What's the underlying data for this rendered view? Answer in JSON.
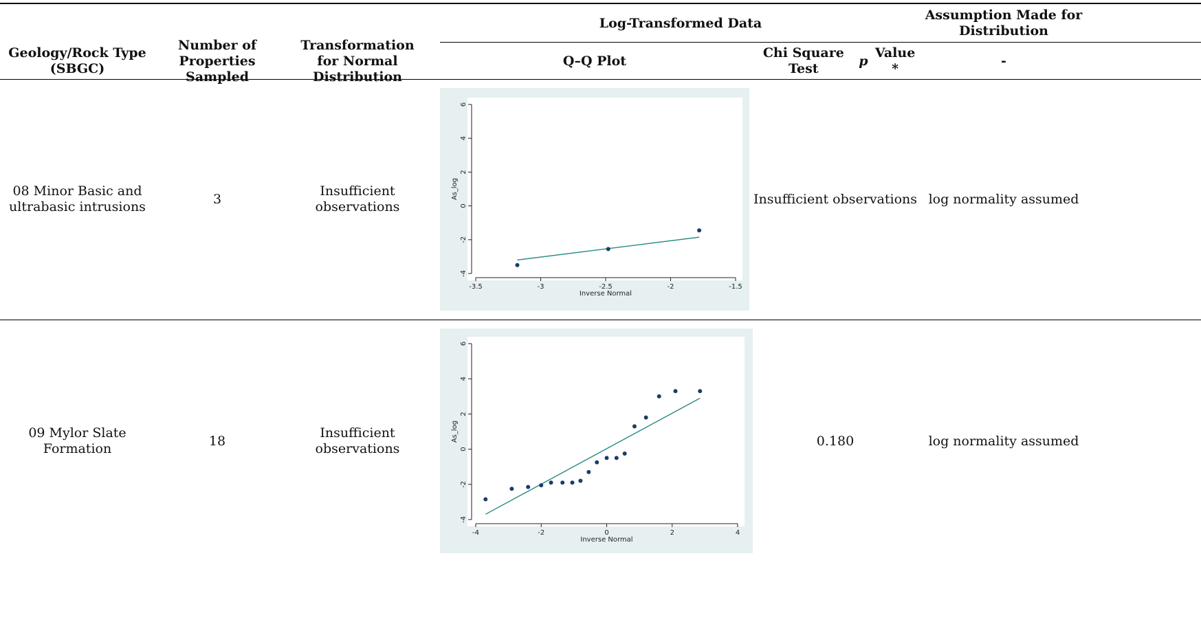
{
  "header": {
    "group_log": "Log-Transformed Data",
    "group_assumption": "Assumption Made for Distribution",
    "columns": [
      "Geology/Rock Type (SBGC)",
      "Number of Properties Sampled",
      "Transformation for Normal Distribution",
      "Q–Q Plot",
      "Chi Square Test",
      "p",
      "Value *",
      "-"
    ]
  },
  "rows": [
    {
      "geology": "08 Minor Basic and ultrabasic intrusions",
      "count": "3",
      "transformation": "Insufficient observations",
      "chi": "Insufficient observations",
      "assumption": "log normality assumed"
    },
    {
      "geology": "09 Mylor Slate Formation",
      "count": "18",
      "transformation": "Insufficient observations",
      "chi": "0.180",
      "assumption": "log normality assumed"
    }
  ],
  "chart_data": [
    {
      "type": "scatter",
      "xlabel": "Inverse Normal",
      "ylabel": "As_log",
      "xlim": [
        -3.5,
        -1.5
      ],
      "ylim": [
        -4,
        6
      ],
      "xticks": [
        "-3.5",
        "-3",
        "-2.5",
        "-2",
        "-1.5"
      ],
      "xtick_values": [
        -3.5,
        -3,
        -2.5,
        -2,
        -1.5
      ],
      "yticks": [
        "-4",
        "-2",
        "0",
        "2",
        "4",
        "6"
      ],
      "ytick_values": [
        -4,
        -2,
        0,
        2,
        4,
        6
      ],
      "points": [
        [
          -3.18,
          -3.5
        ],
        [
          -2.48,
          -2.55
        ],
        [
          -1.78,
          -1.45
        ]
      ],
      "fit_line": [
        [
          -3.18,
          -3.2
        ],
        [
          -1.78,
          -1.85
        ]
      ],
      "colors": {
        "panel": "#e6f0f0",
        "point": "#1a3d66",
        "line": "#2a8a82"
      }
    },
    {
      "type": "scatter",
      "xlabel": "Inverse Normal",
      "ylabel": "As_log",
      "xlim": [
        -4,
        4
      ],
      "ylim": [
        -4,
        6
      ],
      "xticks": [
        "-4",
        "-2",
        "0",
        "2",
        "4"
      ],
      "xtick_values": [
        -4,
        -2,
        0,
        2,
        4
      ],
      "yticks": [
        "-4",
        "-2",
        "0",
        "2",
        "4",
        "6"
      ],
      "ytick_values": [
        -4,
        -2,
        0,
        2,
        4,
        6
      ],
      "points": [
        [
          -3.7,
          -2.85
        ],
        [
          -2.9,
          -2.25
        ],
        [
          -2.4,
          -2.15
        ],
        [
          -2.0,
          -2.05
        ],
        [
          -1.7,
          -1.9
        ],
        [
          -1.35,
          -1.9
        ],
        [
          -1.05,
          -1.9
        ],
        [
          -0.8,
          -1.8
        ],
        [
          -0.55,
          -1.3
        ],
        [
          -0.3,
          -0.75
        ],
        [
          0.0,
          -0.5
        ],
        [
          0.3,
          -0.5
        ],
        [
          0.55,
          -0.25
        ],
        [
          0.85,
          1.3
        ],
        [
          1.2,
          1.8
        ],
        [
          1.6,
          3.0
        ],
        [
          2.1,
          3.3
        ],
        [
          2.85,
          3.3
        ]
      ],
      "fit_line": [
        [
          -3.7,
          -3.7
        ],
        [
          2.85,
          2.9
        ]
      ],
      "colors": {
        "panel": "#e6f0f0",
        "point": "#1a3d66",
        "line": "#2a8a82"
      }
    }
  ]
}
